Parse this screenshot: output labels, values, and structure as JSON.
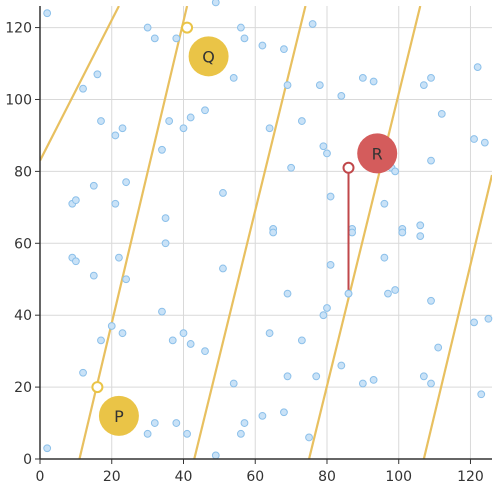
{
  "chart_data": {
    "type": "scatter",
    "xlim": [
      0,
      126
    ],
    "ylim": [
      0,
      126
    ],
    "x_ticks": [
      "0",
      "20",
      "40",
      "60",
      "80",
      "100",
      "120"
    ],
    "y_ticks": [
      "0",
      "20",
      "40",
      "60",
      "80",
      "100",
      "120"
    ],
    "grid": true,
    "colors": {
      "point_fill": "#c9e2f7",
      "point_stroke": "#8cc0ea",
      "boundary_line": "#e8c060",
      "marker_yellow": "#eac447",
      "marker_red": "#d45c5c",
      "segment": "#c0474a",
      "axis": "#333333",
      "grid": "#d9d9d9"
    },
    "boundary_lines": [
      {
        "x1": 0,
        "y1": 83,
        "x2": 22,
        "y2": 126
      },
      {
        "x1": 11,
        "y1": 0,
        "x2": 41,
        "y2": 126
      },
      {
        "x1": 43,
        "y1": 0,
        "x2": 74,
        "y2": 126
      },
      {
        "x1": 75,
        "y1": 0,
        "x2": 106,
        "y2": 126
      },
      {
        "x1": 107,
        "y1": 0,
        "x2": 126,
        "y2": 79
      }
    ],
    "points": [
      [
        2,
        124
      ],
      [
        30,
        120
      ],
      [
        32,
        117
      ],
      [
        38,
        117
      ],
      [
        49,
        127
      ],
      [
        56,
        120
      ],
      [
        57,
        117
      ],
      [
        62,
        115
      ],
      [
        68,
        114
      ],
      [
        76,
        121
      ],
      [
        12,
        103
      ],
      [
        16,
        107
      ],
      [
        54,
        106
      ],
      [
        84,
        101
      ],
      [
        90,
        106
      ],
      [
        93,
        105
      ],
      [
        107,
        104
      ],
      [
        109,
        106
      ],
      [
        112,
        96
      ],
      [
        122,
        109
      ],
      [
        17,
        94
      ],
      [
        21,
        90
      ],
      [
        23,
        92
      ],
      [
        36,
        94
      ],
      [
        40,
        92
      ],
      [
        42,
        95
      ],
      [
        46,
        97
      ],
      [
        64,
        92
      ],
      [
        69,
        104
      ],
      [
        73,
        94
      ],
      [
        78,
        104
      ],
      [
        34,
        86
      ],
      [
        79,
        87
      ],
      [
        80,
        85
      ],
      [
        98,
        81
      ],
      [
        99,
        80
      ],
      [
        109,
        83
      ],
      [
        121,
        89
      ],
      [
        124,
        88
      ],
      [
        9,
        71
      ],
      [
        10,
        72
      ],
      [
        15,
        76
      ],
      [
        21,
        71
      ],
      [
        24,
        77
      ],
      [
        51,
        74
      ],
      [
        70,
        81
      ],
      [
        81,
        73
      ],
      [
        96,
        71
      ],
      [
        35,
        67
      ],
      [
        65,
        64
      ],
      [
        65,
        63
      ],
      [
        87,
        64
      ],
      [
        87,
        63
      ],
      [
        101,
        64
      ],
      [
        101,
        63
      ],
      [
        106,
        65
      ],
      [
        106,
        62
      ],
      [
        35,
        60
      ],
      [
        9,
        56
      ],
      [
        10,
        55
      ],
      [
        15,
        51
      ],
      [
        22,
        56
      ],
      [
        24,
        50
      ],
      [
        51,
        53
      ],
      [
        81,
        54
      ],
      [
        96,
        56
      ],
      [
        97,
        46
      ],
      [
        99,
        47
      ],
      [
        69,
        46
      ],
      [
        79,
        40
      ],
      [
        80,
        42
      ],
      [
        86,
        46
      ],
      [
        109,
        44
      ],
      [
        121,
        38
      ],
      [
        125,
        39
      ],
      [
        20,
        37
      ],
      [
        17,
        33
      ],
      [
        23,
        35
      ],
      [
        34,
        41
      ],
      [
        37,
        33
      ],
      [
        40,
        35
      ],
      [
        42,
        32
      ],
      [
        46,
        30
      ],
      [
        64,
        35
      ],
      [
        73,
        33
      ],
      [
        111,
        31
      ],
      [
        12,
        24
      ],
      [
        54,
        21
      ],
      [
        69,
        23
      ],
      [
        77,
        23
      ],
      [
        84,
        26
      ],
      [
        90,
        21
      ],
      [
        93,
        22
      ],
      [
        107,
        23
      ],
      [
        109,
        21
      ],
      [
        123,
        18
      ],
      [
        30,
        7
      ],
      [
        32,
        10
      ],
      [
        38,
        10
      ],
      [
        41,
        7
      ],
      [
        49,
        1
      ],
      [
        56,
        7
      ],
      [
        57,
        10
      ],
      [
        62,
        12
      ],
      [
        68,
        13
      ],
      [
        75,
        6
      ],
      [
        2,
        3
      ]
    ],
    "markers": [
      {
        "label": "Q",
        "x": 47,
        "y": 112,
        "color": "red_off"
      },
      {
        "label": "R",
        "x": 94,
        "y": 85
      },
      {
        "label": "P",
        "x": 22,
        "y": 12
      }
    ],
    "open_points": [
      {
        "x": 41,
        "y": 120
      },
      {
        "x": 16,
        "y": 20
      },
      {
        "x": 86,
        "y": 81
      }
    ],
    "segment": {
      "x1": 86,
      "y1": 81,
      "x2": 86,
      "y2": 46
    }
  }
}
